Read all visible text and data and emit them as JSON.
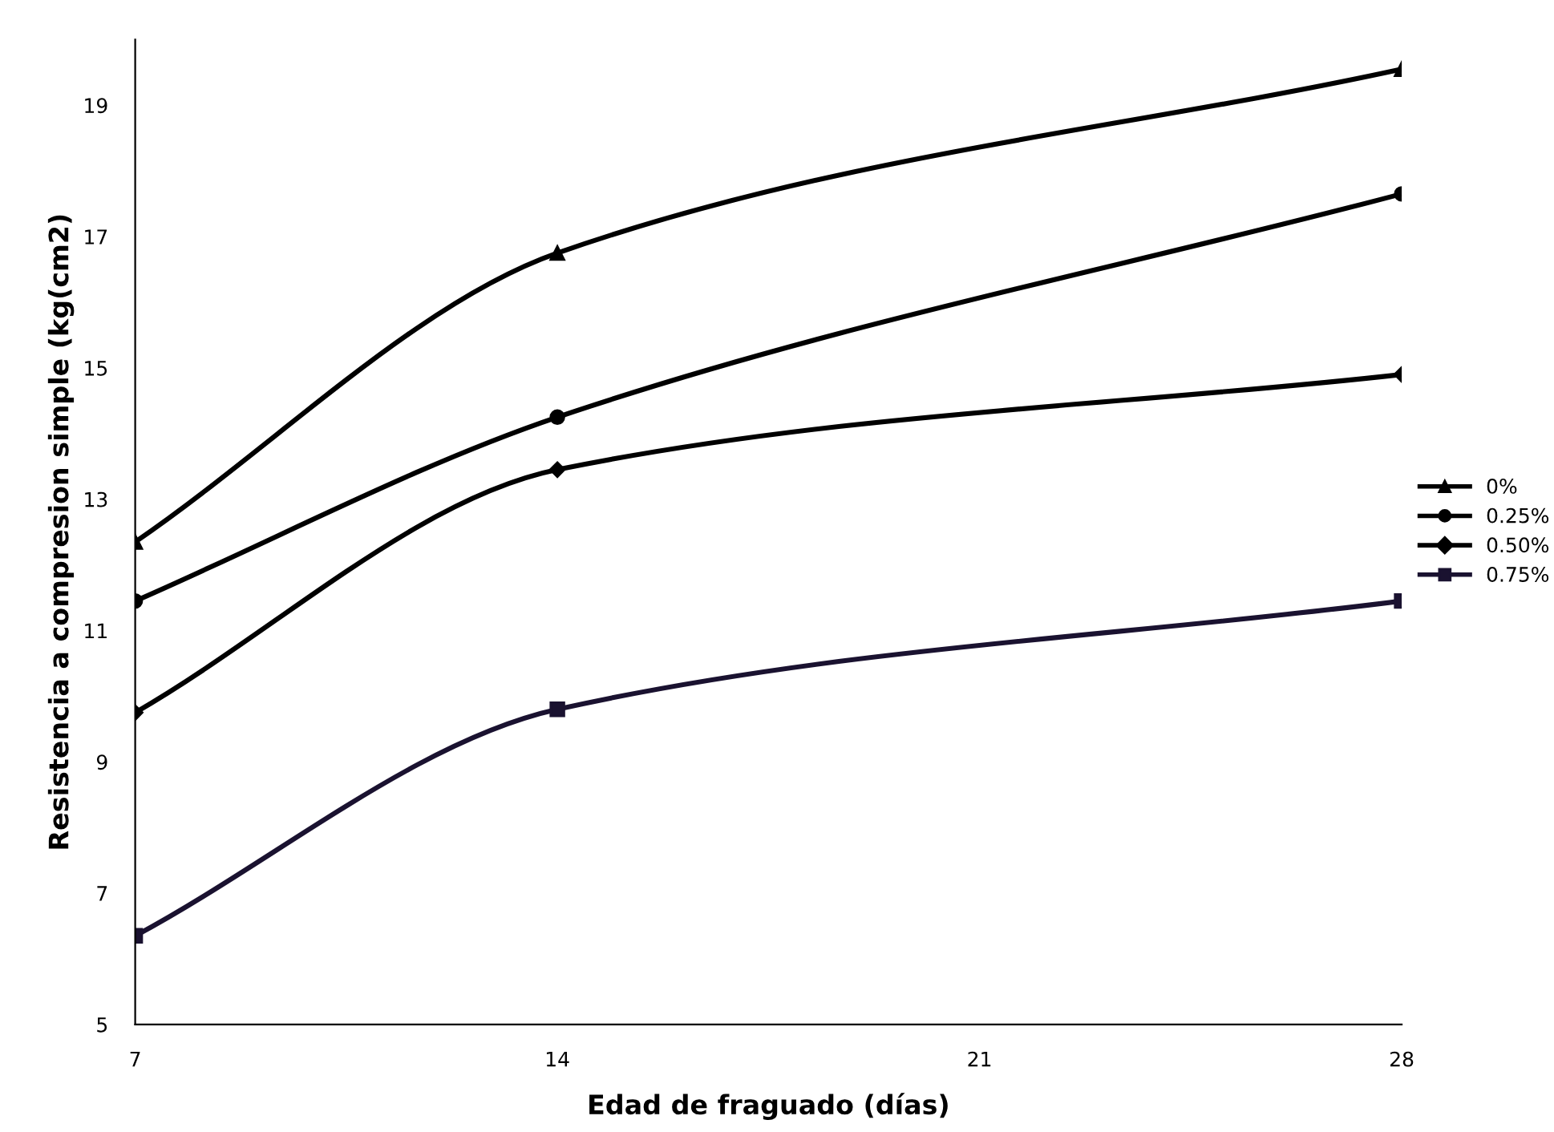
{
  "chart_data": {
    "type": "line",
    "xlabel": "Edad de fraguado (días)",
    "ylabel": "Resistencia a compresion simple (kg(cm2)",
    "x": [
      7,
      14,
      28
    ],
    "xlim": [
      7,
      28
    ],
    "xticks": [
      7,
      14,
      21,
      28
    ],
    "ylim": [
      5,
      20
    ],
    "yticks": [
      5,
      7,
      9,
      11,
      13,
      15,
      17,
      19
    ],
    "grid": false,
    "legend": "right",
    "line_style": "solid",
    "series": [
      {
        "name": "0%",
        "color": "#000000",
        "marker": "triangle",
        "values": [
          12.35,
          16.75,
          19.55
        ]
      },
      {
        "name": "0.25%",
        "color": "#000000",
        "marker": "circle",
        "values": [
          11.45,
          14.25,
          17.65
        ]
      },
      {
        "name": "0.50%",
        "color": "#000000",
        "marker": "diamond",
        "values": [
          9.75,
          13.45,
          14.9
        ]
      },
      {
        "name": "0.75%",
        "color": "#1a1230",
        "marker": "square",
        "values": [
          6.35,
          9.8,
          11.45
        ]
      }
    ]
  }
}
